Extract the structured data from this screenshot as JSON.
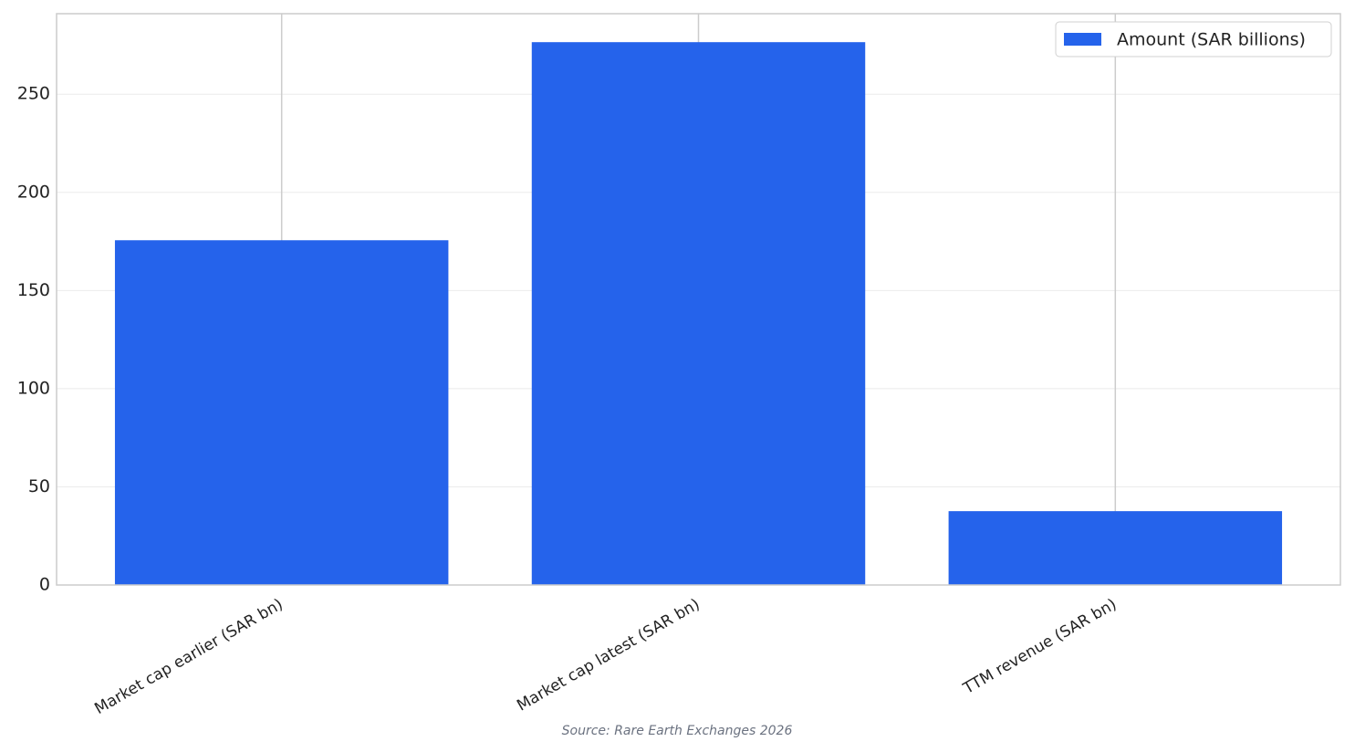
{
  "chart_data": {
    "type": "bar",
    "categories": [
      "Market cap earlier (SAR bn)",
      "Market cap latest (SAR bn)",
      "TTM revenue (SAR bn)"
    ],
    "series": [
      {
        "name": "Amount (SAR billions)",
        "color": "#2563eb",
        "values": [
          175.6,
          276.5,
          37.6
        ]
      }
    ],
    "ylim": [
      0,
      291
    ],
    "yticks": [
      0,
      50,
      100,
      150,
      200,
      250
    ],
    "grid": true,
    "legend": "upper right",
    "source": "Source: Rare Earth Exchanges 2026"
  }
}
